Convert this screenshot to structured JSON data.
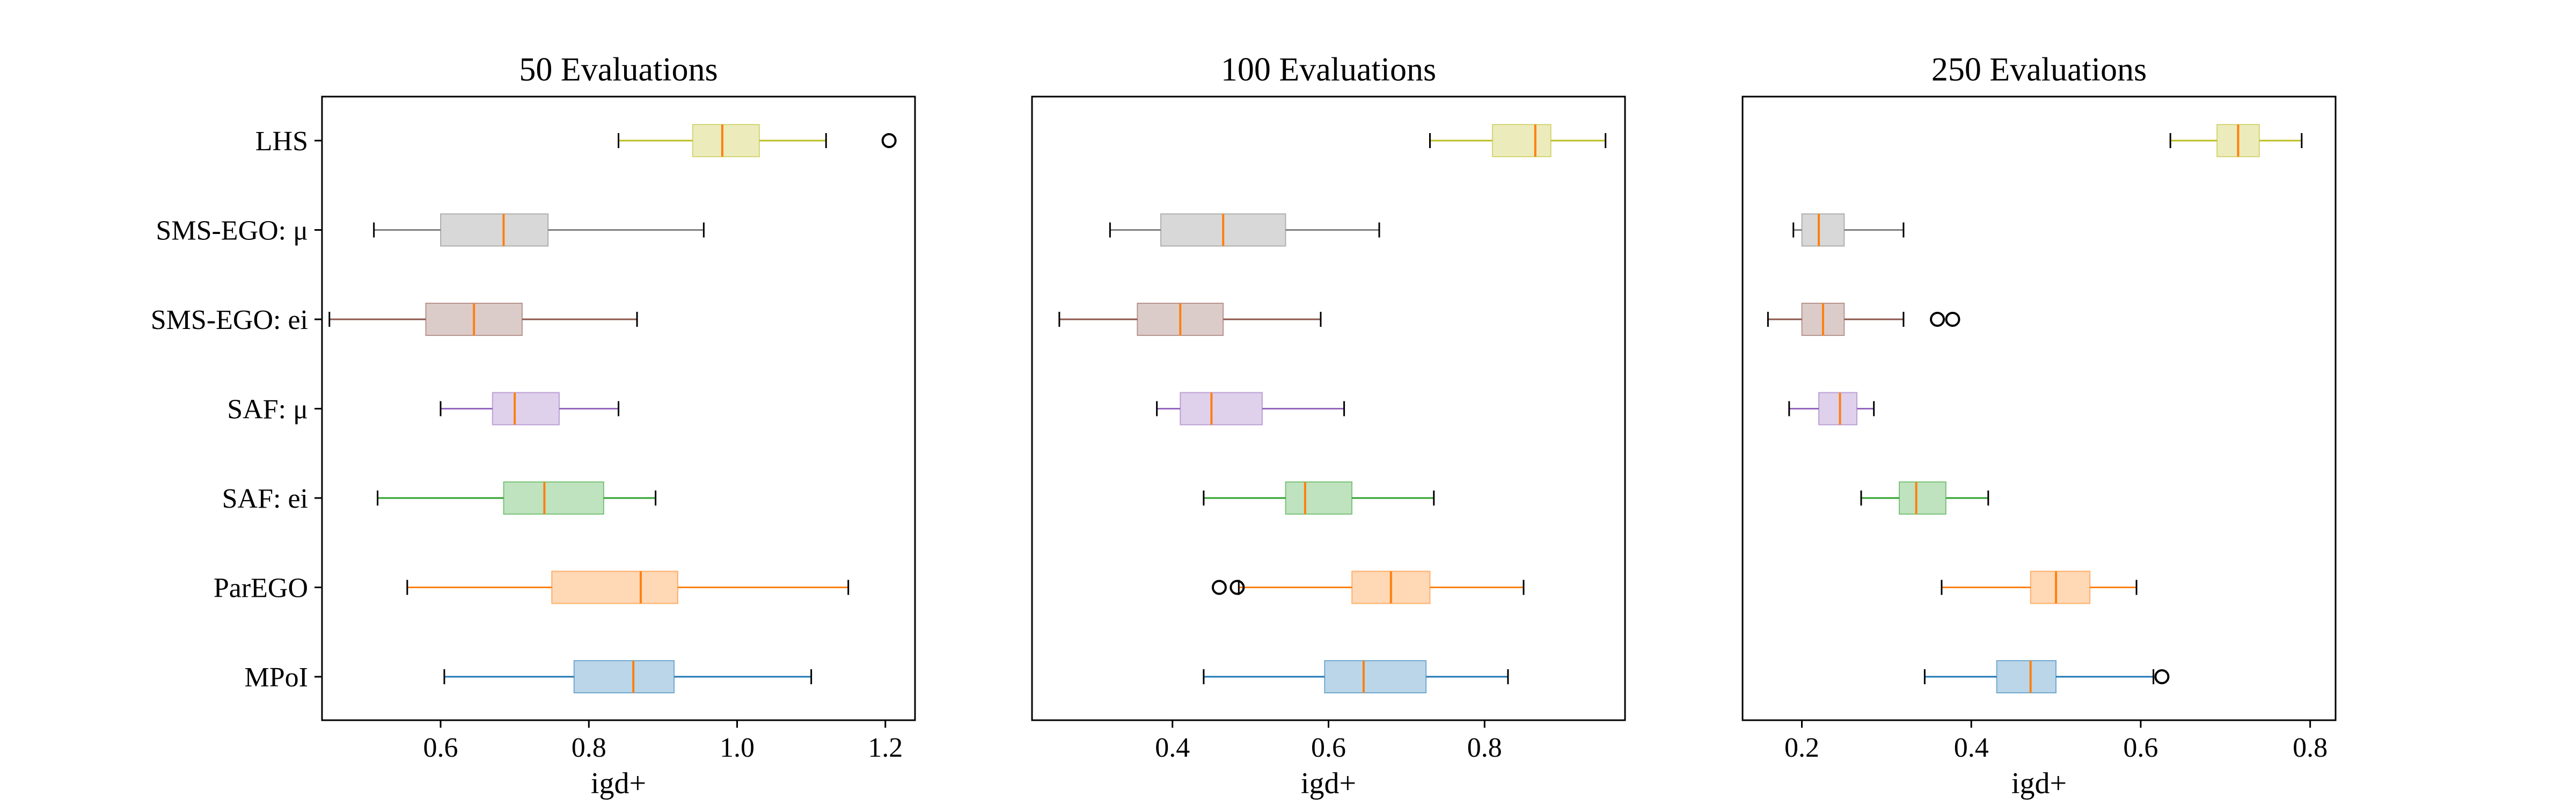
{
  "chart_data": [
    {
      "type": "boxplot",
      "title": "50 Evaluations",
      "xlabel": "igd+",
      "xlim": [
        0.44,
        1.24
      ],
      "xticks": [
        "0.6",
        "0.8",
        "1.0",
        "1.2"
      ],
      "xtick_values": [
        0.6,
        0.8,
        1.0,
        1.2
      ],
      "categories": [
        "LHS",
        "SMS-EGO: μ",
        "SMS-EGO: ei",
        "SAF: μ",
        "SAF: ei",
        "ParEGO",
        "MPoI"
      ],
      "series": [
        {
          "name": "LHS",
          "color": "#bcbd22",
          "whislo": 0.84,
          "q1": 0.94,
          "median": 0.98,
          "q3": 1.03,
          "whishi": 1.12,
          "fliers": [
            1.205
          ]
        },
        {
          "name": "SMS-EGO: μ",
          "color": "#7f7f7f",
          "whislo": 0.51,
          "q1": 0.6,
          "median": 0.685,
          "q3": 0.745,
          "whishi": 0.955,
          "fliers": []
        },
        {
          "name": "SMS-EGO: ei",
          "color": "#8c564b",
          "whislo": 0.45,
          "q1": 0.58,
          "median": 0.645,
          "q3": 0.71,
          "whishi": 0.865,
          "fliers": []
        },
        {
          "name": "SAF: μ",
          "color": "#9467bd",
          "whislo": 0.6,
          "q1": 0.67,
          "median": 0.7,
          "q3": 0.76,
          "whishi": 0.84,
          "fliers": []
        },
        {
          "name": "SAF: ei",
          "color": "#2ca02c",
          "whislo": 0.515,
          "q1": 0.685,
          "median": 0.74,
          "q3": 0.82,
          "whishi": 0.89,
          "fliers": []
        },
        {
          "name": "ParEGO",
          "color": "#ff7f0e",
          "whislo": 0.555,
          "q1": 0.75,
          "median": 0.87,
          "q3": 0.92,
          "whishi": 1.15,
          "fliers": []
        },
        {
          "name": "MPoI",
          "color": "#1f77b4",
          "whislo": 0.605,
          "q1": 0.78,
          "median": 0.86,
          "q3": 0.915,
          "whishi": 1.1,
          "fliers": []
        }
      ]
    },
    {
      "type": "boxplot",
      "title": "100 Evaluations",
      "xlabel": "igd+",
      "xlim": [
        0.22,
        0.98
      ],
      "xticks": [
        "0.4",
        "0.6",
        "0.8"
      ],
      "xtick_values": [
        0.4,
        0.6,
        0.8
      ],
      "categories": [
        "LHS",
        "SMS-EGO: μ",
        "SMS-EGO: ei",
        "SAF: μ",
        "SAF: ei",
        "ParEGO",
        "MPoI"
      ],
      "series": [
        {
          "name": "LHS",
          "color": "#bcbd22",
          "whislo": 0.73,
          "q1": 0.81,
          "median": 0.865,
          "q3": 0.885,
          "whishi": 0.955,
          "fliers": []
        },
        {
          "name": "SMS-EGO: μ",
          "color": "#7f7f7f",
          "whislo": 0.32,
          "q1": 0.385,
          "median": 0.465,
          "q3": 0.545,
          "whishi": 0.665,
          "fliers": []
        },
        {
          "name": "SMS-EGO: ei",
          "color": "#8c564b",
          "whislo": 0.255,
          "q1": 0.355,
          "median": 0.41,
          "q3": 0.465,
          "whishi": 0.59,
          "fliers": []
        },
        {
          "name": "SAF: μ",
          "color": "#9467bd",
          "whislo": 0.38,
          "q1": 0.41,
          "median": 0.45,
          "q3": 0.515,
          "whishi": 0.62,
          "fliers": []
        },
        {
          "name": "SAF: ei",
          "color": "#2ca02c",
          "whislo": 0.44,
          "q1": 0.545,
          "median": 0.57,
          "q3": 0.63,
          "whishi": 0.735,
          "fliers": []
        },
        {
          "name": "ParEGO",
          "color": "#ff7f0e",
          "whislo": 0.485,
          "q1": 0.63,
          "median": 0.68,
          "q3": 0.73,
          "whishi": 0.85,
          "fliers": [
            0.46,
            0.483
          ]
        },
        {
          "name": "MPoI",
          "color": "#1f77b4",
          "whislo": 0.44,
          "q1": 0.595,
          "median": 0.645,
          "q3": 0.725,
          "whishi": 0.83,
          "fliers": []
        }
      ]
    },
    {
      "type": "boxplot",
      "title": "250 Evaluations",
      "xlabel": "igd+",
      "xlim": [
        0.13,
        0.83
      ],
      "xticks": [
        "0.2",
        "0.4",
        "0.6",
        "0.8"
      ],
      "xtick_values": [
        0.2,
        0.4,
        0.6,
        0.8
      ],
      "categories": [
        "LHS",
        "SMS-EGO: μ",
        "SMS-EGO: ei",
        "SAF: μ",
        "SAF: ei",
        "ParEGO",
        "MPoI"
      ],
      "series": [
        {
          "name": "LHS",
          "color": "#bcbd22",
          "whislo": 0.635,
          "q1": 0.69,
          "median": 0.715,
          "q3": 0.74,
          "whishi": 0.79,
          "fliers": []
        },
        {
          "name": "SMS-EGO: μ",
          "color": "#7f7f7f",
          "whislo": 0.19,
          "q1": 0.2,
          "median": 0.22,
          "q3": 0.25,
          "whishi": 0.32,
          "fliers": []
        },
        {
          "name": "SMS-EGO: ei",
          "color": "#8c564b",
          "whislo": 0.16,
          "q1": 0.2,
          "median": 0.225,
          "q3": 0.25,
          "whishi": 0.32,
          "fliers": [
            0.36,
            0.378
          ]
        },
        {
          "name": "SAF: μ",
          "color": "#9467bd",
          "whislo": 0.185,
          "q1": 0.22,
          "median": 0.245,
          "q3": 0.265,
          "whishi": 0.285,
          "fliers": []
        },
        {
          "name": "SAF: ei",
          "color": "#2ca02c",
          "whislo": 0.27,
          "q1": 0.315,
          "median": 0.335,
          "q3": 0.37,
          "whishi": 0.42,
          "fliers": []
        },
        {
          "name": "ParEGO",
          "color": "#ff7f0e",
          "whislo": 0.365,
          "q1": 0.47,
          "median": 0.5,
          "q3": 0.54,
          "whishi": 0.595,
          "fliers": []
        },
        {
          "name": "MPoI",
          "color": "#1f77b4",
          "whislo": 0.345,
          "q1": 0.43,
          "median": 0.47,
          "q3": 0.5,
          "whishi": 0.615,
          "fliers": [
            0.625
          ]
        }
      ]
    }
  ]
}
